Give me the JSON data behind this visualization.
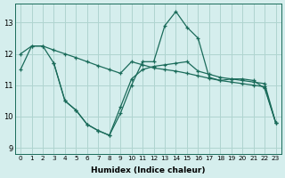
{
  "xlabel": "Humidex (Indice chaleur)",
  "bg_color": "#d5eeed",
  "line_color": "#1a6b5a",
  "grid_color": "#afd4d0",
  "xlim": [
    -0.5,
    23.5
  ],
  "ylim": [
    8.8,
    13.6
  ],
  "yticks": [
    9,
    10,
    11,
    12,
    13
  ],
  "xticks": [
    0,
    1,
    2,
    3,
    4,
    5,
    6,
    7,
    8,
    9,
    10,
    11,
    12,
    13,
    14,
    15,
    16,
    17,
    18,
    19,
    20,
    21,
    22,
    23
  ],
  "s1_x": [
    0,
    1,
    2,
    3,
    4,
    5,
    6,
    7,
    8,
    9,
    10,
    11,
    12,
    13,
    14,
    15,
    16,
    17,
    18,
    19,
    20,
    21,
    22,
    23
  ],
  "s1_y": [
    12.0,
    12.25,
    12.25,
    12.12,
    12.0,
    11.88,
    11.75,
    11.62,
    11.5,
    11.38,
    11.75,
    11.65,
    11.55,
    11.5,
    11.45,
    11.38,
    11.3,
    11.22,
    11.15,
    11.1,
    11.05,
    11.0,
    10.95,
    9.8
  ],
  "s2_x": [
    0,
    1,
    2,
    3,
    4,
    5,
    6,
    7,
    8,
    9,
    10,
    11,
    12,
    13,
    14,
    15,
    16,
    17,
    18,
    19,
    20,
    21,
    22,
    23
  ],
  "s2_y": [
    11.5,
    12.25,
    12.25,
    11.7,
    10.5,
    10.2,
    9.75,
    9.55,
    9.4,
    10.1,
    11.0,
    11.75,
    11.75,
    12.9,
    13.35,
    12.85,
    12.5,
    11.25,
    11.15,
    11.2,
    11.2,
    11.15,
    10.9,
    9.8
  ],
  "s3_x": [
    3,
    4,
    5,
    6,
    7,
    8,
    9,
    10,
    11,
    12,
    13,
    14,
    15,
    16,
    17,
    18,
    19,
    20,
    21,
    22,
    23
  ],
  "s3_y": [
    11.7,
    10.5,
    10.2,
    9.75,
    9.55,
    9.4,
    10.3,
    11.2,
    11.5,
    11.6,
    11.65,
    11.7,
    11.75,
    11.45,
    11.35,
    11.25,
    11.2,
    11.15,
    11.1,
    11.05,
    9.8
  ]
}
